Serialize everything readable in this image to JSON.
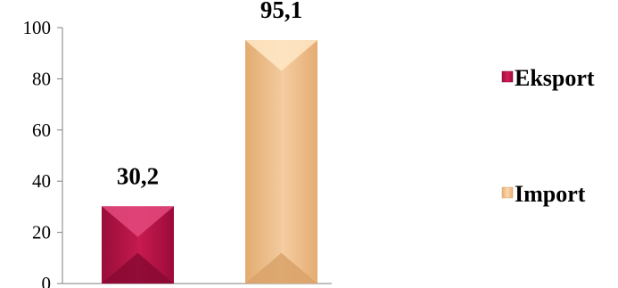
{
  "chart_data": {
    "type": "bar",
    "categories": [
      "Eksport",
      "Import"
    ],
    "values": [
      30.2,
      95.1
    ],
    "data_labels": [
      "30,2",
      "95,1"
    ],
    "ylim": [
      0,
      100
    ],
    "yticks": [
      0,
      20,
      40,
      60,
      80,
      100
    ],
    "ytick_labels": [
      "0",
      "20",
      "40",
      "60",
      "80",
      "100"
    ],
    "grid": false,
    "legend_position": "right",
    "legend": [
      {
        "label": "Eksport",
        "color": "#c0124a"
      },
      {
        "label": "Import",
        "color": "#f3c38f"
      }
    ],
    "colors": {
      "Eksport": {
        "base": "#c0124a",
        "light": "#e0477a",
        "dark": "#8a0a33"
      },
      "Import": {
        "base": "#f6c996",
        "light": "#fde4c2",
        "dark": "#d9a36a"
      }
    }
  }
}
